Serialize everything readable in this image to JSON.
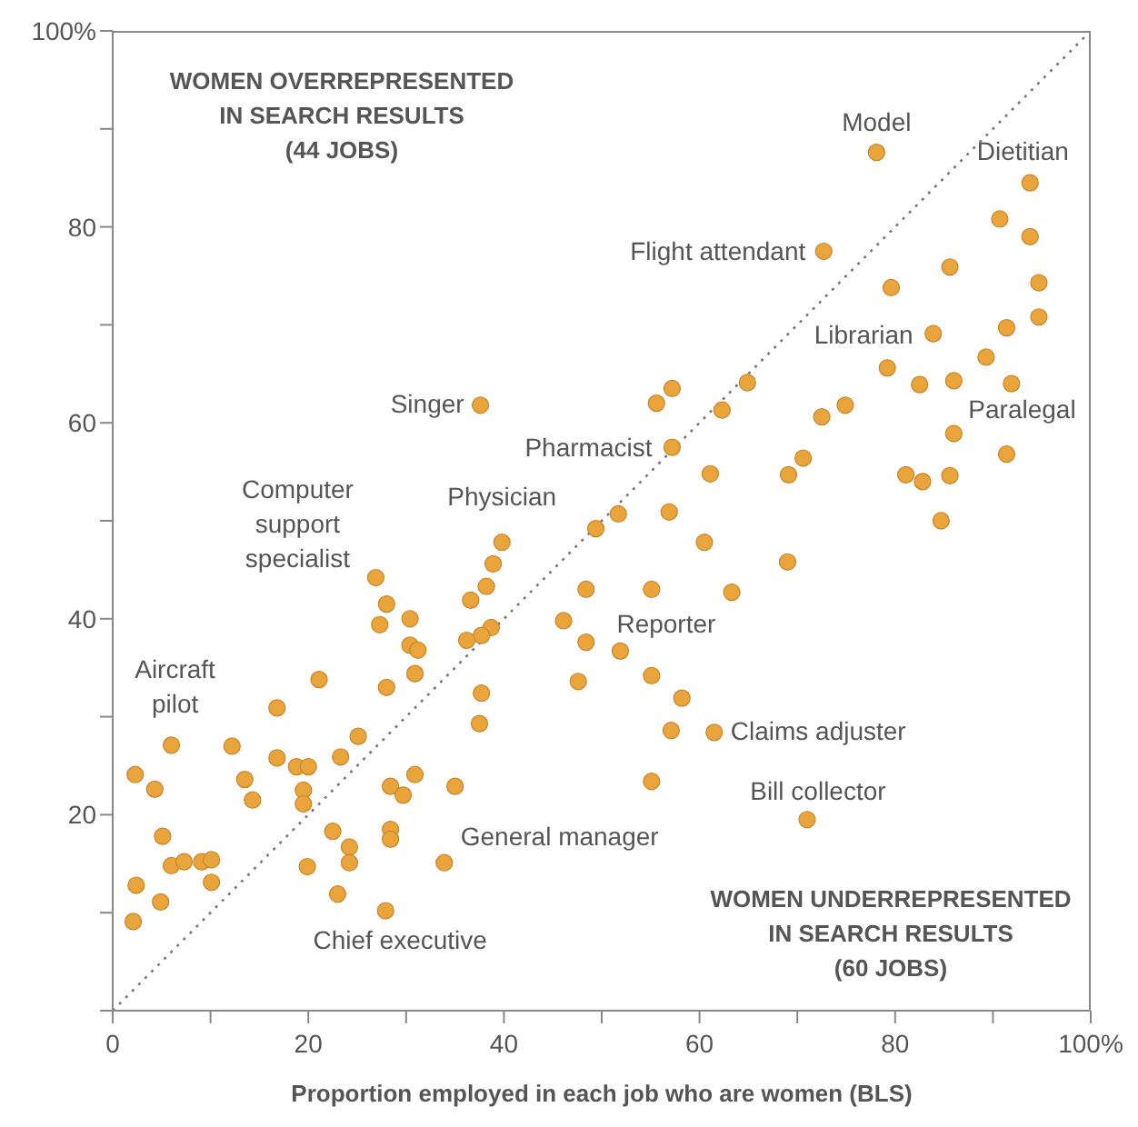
{
  "chart_data": {
    "type": "scatter",
    "xlabel": "Proportion employed in each job who are women (BLS)",
    "xlim": [
      0,
      100
    ],
    "ylim": [
      0,
      100
    ],
    "xticks": [
      {
        "value": 0,
        "label": "0"
      },
      {
        "value": 10,
        "label": null
      },
      20,
      {
        "value": 30,
        "label": null
      },
      40,
      {
        "value": 50,
        "label": null
      },
      60,
      {
        "value": 70,
        "label": null
      },
      80,
      {
        "value": 90,
        "label": null
      },
      {
        "value": 100,
        "label": "100%"
      }
    ],
    "yticks": [
      {
        "value": 0,
        "label": null
      },
      {
        "value": 10,
        "label": null
      },
      20,
      {
        "value": 30,
        "label": null
      },
      40,
      {
        "value": 50,
        "label": null
      },
      60,
      {
        "value": 70,
        "label": null
      },
      80,
      {
        "value": 90,
        "label": null
      },
      {
        "value": 100,
        "label": "100%"
      }
    ],
    "grid": false,
    "legend": false,
    "series": [
      {
        "color": "#e9a43c",
        "marker": "circle",
        "x": [
          26.9,
          28.0,
          30.4,
          27.3,
          30.4,
          31.2,
          30.9,
          28.0,
          21.1,
          16.8,
          6.0,
          12.2,
          25.1,
          23.3,
          16.8,
          18.8,
          20.0,
          2.3,
          4.3,
          13.5,
          14.3,
          19.5,
          19.5,
          28.4,
          29.7,
          30.9,
          35.0,
          5.1,
          22.5,
          24.2,
          28.4,
          28.4,
          6.0,
          7.3,
          9.1,
          10.1,
          10.1,
          19.9,
          24.2,
          33.9,
          2.4,
          4.9,
          23.0,
          2.1,
          27.9,
          38.9,
          38.2,
          36.6,
          38.7,
          37.7,
          36.2,
          37.7,
          37.5,
          39.8,
          57.2,
          61.1,
          70.6,
          69.1,
          72.5,
          49.4,
          51.7,
          56.9,
          60.5,
          69.0,
          63.3,
          48.4,
          55.1,
          46.1,
          48.4,
          51.9,
          47.6,
          55.1,
          58.2,
          57.1,
          61.5,
          55.1,
          71.0,
          78.1,
          72.7,
          37.6,
          57.2,
          55.6,
          62.3,
          64.9,
          74.9,
          79.6,
          79.2,
          85.6,
          90.7,
          93.8,
          93.8,
          94.7,
          94.7,
          91.4,
          83.9,
          89.3,
          82.5,
          86.0,
          91.9,
          86.0,
          81.1,
          82.8,
          85.6,
          91.4,
          84.7
        ],
        "values": [
          44.2,
          41.5,
          40.0,
          39.4,
          37.3,
          36.8,
          34.4,
          33.0,
          33.8,
          30.9,
          27.1,
          27.0,
          28.0,
          25.9,
          25.8,
          24.9,
          24.9,
          24.1,
          22.6,
          23.6,
          21.5,
          22.5,
          21.1,
          22.9,
          22.0,
          24.1,
          22.9,
          17.8,
          18.3,
          16.7,
          18.5,
          17.5,
          14.8,
          15.2,
          15.2,
          15.4,
          13.1,
          14.7,
          15.1,
          15.1,
          12.8,
          11.1,
          11.9,
          9.1,
          10.2,
          45.6,
          43.3,
          41.9,
          39.1,
          38.3,
          37.8,
          32.4,
          29.3,
          47.8,
          57.5,
          54.8,
          56.4,
          54.7,
          60.6,
          49.2,
          50.7,
          50.9,
          47.8,
          45.8,
          42.7,
          43.0,
          43.0,
          39.8,
          37.6,
          36.7,
          33.6,
          34.2,
          31.9,
          28.6,
          28.4,
          23.4,
          19.5,
          87.6,
          77.5,
          61.8,
          63.5,
          62.0,
          61.3,
          64.1,
          61.8,
          73.8,
          65.6,
          75.9,
          80.8,
          79.0,
          84.5,
          74.3,
          70.8,
          69.7,
          69.1,
          66.7,
          63.9,
          64.3,
          64.0,
          58.9,
          54.7,
          54.0,
          54.6,
          56.8,
          50.0
        ]
      },
      {
        "type": "line",
        "color": "#777777",
        "line_style": "dotted",
        "marker": "none",
        "x": [
          0,
          100
        ],
        "values": [
          0,
          100
        ]
      }
    ],
    "annotations": [
      "WOMEN OVERREPRESENTED\nIN SEARCH RESULTS\n(44 JOBS)",
      "WOMEN UNDERREPRESENTED\nIN SEARCH RESULTS\n(60 JOBS)",
      {
        "text": "Model",
        "x": 78.1,
        "y": 87.6
      },
      {
        "text": "Dietitian",
        "x": 93.8,
        "y": 84.5
      },
      {
        "text": "Flight attendant",
        "x": 72.7,
        "y": 77.5
      },
      {
        "text": "Librarian",
        "x": 79.2,
        "y": 65.6
      },
      {
        "text": "Singer",
        "x": 37.6,
        "y": 61.8
      },
      {
        "text": "Paralegal",
        "x": 86.0,
        "y": 58.9
      },
      {
        "text": "Pharmacist",
        "x": 57.2,
        "y": 57.5
      },
      {
        "text": "Computer\nsupport\nspecialist",
        "x": 26.9,
        "y": 44.2
      },
      {
        "text": "Physician",
        "x": 39.8,
        "y": 47.8
      },
      {
        "text": "Reporter",
        "x": 55.1,
        "y": 43.0
      },
      {
        "text": "Aircraft\npilot",
        "x": 6.0,
        "y": 27.1
      },
      {
        "text": "Claims adjuster",
        "x": 61.5,
        "y": 28.4
      },
      {
        "text": "Bill collector",
        "x": 71.0,
        "y": 19.5
      },
      {
        "text": "General manager",
        "x": 33.9,
        "y": 15.1
      },
      {
        "text": "Chief executive",
        "x": 27.9,
        "y": 10.2
      }
    ]
  }
}
